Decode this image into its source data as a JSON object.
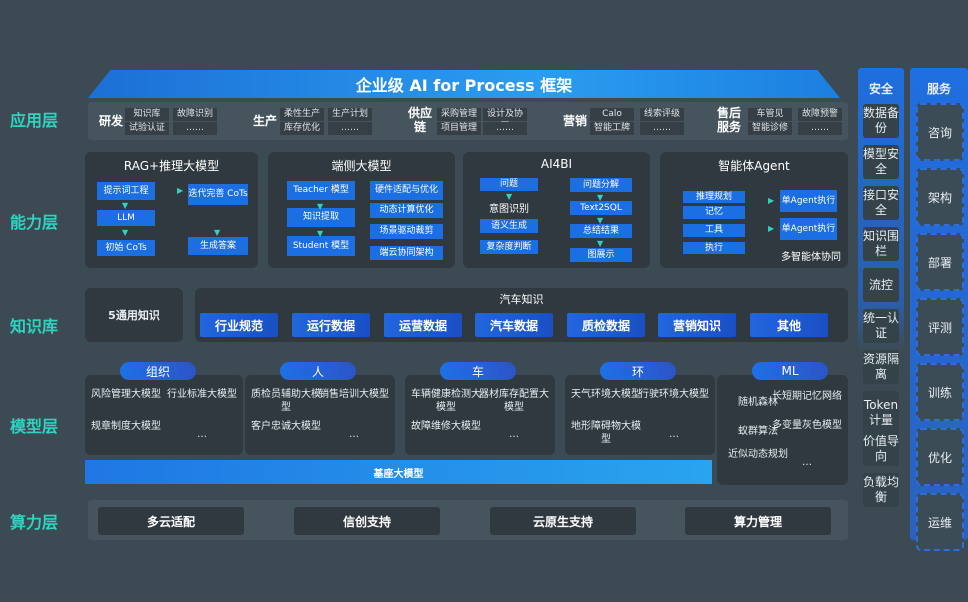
{
  "title": "企业级 AI for Process 框架",
  "layers": {
    "app": "应用层",
    "capability": "能力层",
    "knowledge": "知识库",
    "model": "模型层",
    "compute": "算力层"
  },
  "app_groups": [
    {
      "label": "研发",
      "items": [
        "知识库",
        "故障识别",
        "试验认证",
        "……"
      ]
    },
    {
      "label": "生产",
      "items": [
        "柔性生产",
        "生产计划",
        "库存优化",
        "……"
      ]
    },
    {
      "label": "供应链",
      "items": [
        "采购管理",
        "设计及协同",
        "项目管理",
        "……"
      ]
    },
    {
      "label": "营销",
      "items": [
        "Calo",
        "线索评级",
        "智能工牌",
        "……"
      ]
    },
    {
      "label": "售后服务",
      "items": [
        "车管见",
        "故障预警",
        "智能诊修",
        "……"
      ]
    }
  ],
  "capability": {
    "rag": {
      "title": "RAG+推理大模型",
      "boxes": [
        "提示词工程",
        "LLM",
        "初始 CoTs",
        "迭代完善 CoTs",
        "生成答案"
      ]
    },
    "edge": {
      "title": "端侧大模型",
      "boxes": [
        "Teacher 模型",
        "知识提取",
        "Student 模型",
        "硬件适配与优化",
        "动态计算优化",
        "场景驱动裁剪",
        "端云协同架构"
      ]
    },
    "ai4bi": {
      "title": "AI4BI",
      "boxes": [
        "问题",
        "意图识别",
        "语义生成",
        "复杂度判断",
        "问题分解",
        "Text2SQL",
        "总结结果",
        "图展示"
      ]
    },
    "agent": {
      "title": "智能体Agent",
      "boxes": [
        "推理规划",
        "记忆",
        "工具",
        "执行",
        "单Agent执行",
        "单Agent执行"
      ],
      "footer": "多智能体协同"
    }
  },
  "knowledge": {
    "general": "5通用知识",
    "auto_title": "汽车知识",
    "chips": [
      "行业规范",
      "运行数据",
      "运营数据",
      "汽车数据",
      "质检数据",
      "营销知识",
      "其他"
    ]
  },
  "models": [
    {
      "label": "组织",
      "items": [
        "风险管理大模型",
        "行业标准大模型",
        "规章制度大模型",
        "…"
      ]
    },
    {
      "label": "人",
      "items": [
        "质检员辅助大模型",
        "销售培训大模型",
        "客户忠诚大模型",
        "…"
      ]
    },
    {
      "label": "车",
      "items": [
        "车辆健康检测大模型",
        "器材库存配置大模型",
        "故障维修大模型",
        "…"
      ]
    },
    {
      "label": "环",
      "items": [
        "天气环境大模型",
        "行驶环境大模型",
        "地形障碍物大模型",
        "…"
      ]
    },
    {
      "label": "ML",
      "items": [
        "随机森林",
        "长短期记忆网络",
        "蚁群算法",
        "多变量灰色模型",
        "近似动态规划",
        "…"
      ]
    }
  ],
  "base_model": "基座大模型",
  "compute": [
    "多云适配",
    "信创支持",
    "云原生支持",
    "算力管理"
  ],
  "security": {
    "title": "安全",
    "items": [
      "数据备份",
      "模型安全",
      "接口安全",
      "知识围栏",
      "流控",
      "统一认证",
      "资源隔离",
      "Token计量",
      "价值导向",
      "负载均衡"
    ]
  },
  "service": {
    "title": "服务",
    "items": [
      "咨询",
      "架构",
      "部署",
      "评测",
      "训练",
      "优化",
      "运维"
    ]
  },
  "colors": {
    "background": "#3c4b53",
    "accent": "#1b6fe2",
    "layer_label": "#2fd3c1",
    "panel": "#2f393f"
  }
}
